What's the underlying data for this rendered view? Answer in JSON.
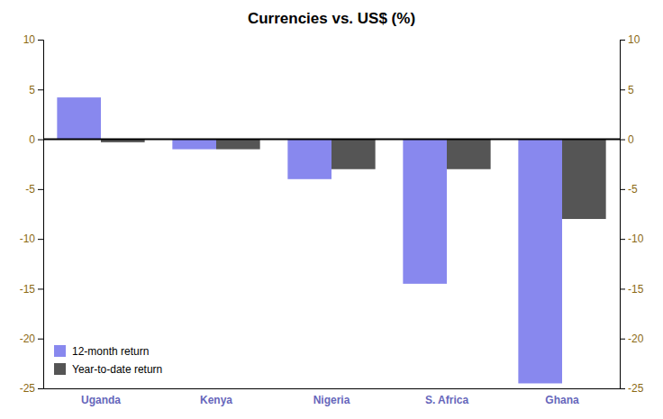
{
  "chart_data": {
    "type": "bar",
    "title": "Currencies vs. US$ (%)",
    "categories": [
      "Uganda",
      "Kenya",
      "Nigeria",
      "S. Africa",
      "Ghana"
    ],
    "series": [
      {
        "name": "12-month return",
        "color": "#8888ee",
        "values": [
          4.2,
          -1.0,
          -4.0,
          -14.5,
          -24.5
        ]
      },
      {
        "name": "Year-to-date return",
        "color": "#555555",
        "values": [
          -0.3,
          -1.0,
          -3.0,
          -3.0,
          -8.0
        ]
      }
    ],
    "ylim": [
      -25,
      10
    ],
    "yticks": [
      -25,
      -20,
      -15,
      -10,
      -5,
      0,
      5,
      10
    ],
    "y2lim": [
      -25,
      10
    ],
    "y2ticks": [
      -25,
      -20,
      -15,
      -10,
      -5,
      0,
      5,
      10
    ],
    "grid": false,
    "legend": "lower left"
  }
}
